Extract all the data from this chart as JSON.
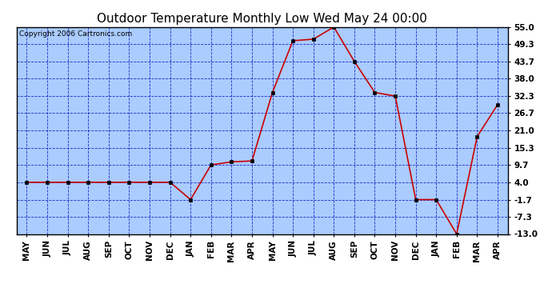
{
  "title": "Outdoor Temperature Monthly Low Wed May 24 00:00",
  "copyright_text": "Copyright 2006 Cartronics.com",
  "x_labels": [
    "MAY",
    "JUN",
    "JUL",
    "AUG",
    "SEP",
    "OCT",
    "NOV",
    "DEC",
    "JAN",
    "FEB",
    "MAR",
    "APR",
    "MAY",
    "JUN",
    "JUL",
    "AUG",
    "SEP",
    "OCT",
    "NOV",
    "DEC",
    "JAN",
    "FEB",
    "MAR",
    "APR"
  ],
  "y_values": [
    4.0,
    4.0,
    4.0,
    4.0,
    4.0,
    4.0,
    4.0,
    4.0,
    -1.7,
    9.7,
    10.7,
    11.0,
    33.5,
    50.5,
    51.0,
    55.0,
    43.7,
    33.5,
    32.3,
    -1.7,
    -1.7,
    -13.0,
    19.0,
    29.5
  ],
  "y_ticks": [
    55.0,
    49.3,
    43.7,
    38.0,
    32.3,
    26.7,
    21.0,
    15.3,
    9.7,
    4.0,
    -1.7,
    -7.3,
    -13.0
  ],
  "y_min": -13.0,
  "y_max": 55.0,
  "line_color": "#cc0000",
  "marker": "s",
  "marker_size": 3,
  "bg_color": "#aaccff",
  "grid_color": "#0000bb",
  "title_fontsize": 11,
  "tick_fontsize": 7.5,
  "copyright_fontsize": 6.5
}
